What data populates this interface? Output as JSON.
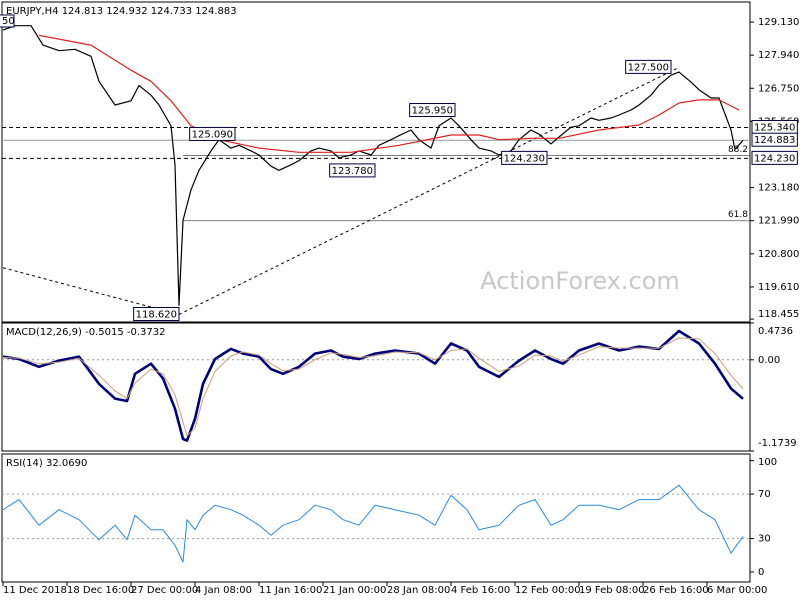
{
  "chart_data": [
    {
      "type": "line",
      "title": "EURJPY,H4  124.813 124.932 124.733 124.883",
      "corner_label": "50",
      "watermark": "ActionForex.com",
      "xlim": [
        0,
        187
      ],
      "ylim": [
        118.35,
        129.85
      ],
      "yticks": [
        {
          "value": 118.455,
          "label": "118.455"
        },
        {
          "value": 119.61,
          "label": "119.610"
        },
        {
          "value": 120.8,
          "label": "120.800"
        },
        {
          "value": 121.99,
          "label": "121.990"
        },
        {
          "value": 123.18,
          "label": "123.180"
        },
        {
          "value": 125.56,
          "label": "125.560"
        },
        {
          "value": 126.75,
          "label": "126.750"
        },
        {
          "value": 127.94,
          "label": "127.940"
        },
        {
          "value": 129.13,
          "label": "129.130"
        }
      ],
      "series": [
        {
          "color": "#000000",
          "width": 1.2,
          "x": [
            0,
            3,
            7,
            10,
            14,
            18,
            22,
            24,
            28,
            32,
            34,
            37,
            39,
            42,
            43,
            44,
            45,
            47,
            49,
            52,
            54,
            57,
            59,
            62,
            64,
            67,
            69,
            72,
            74,
            77,
            79,
            82,
            84,
            87,
            89,
            92,
            94,
            97,
            99,
            102,
            104,
            107,
            109,
            112,
            114,
            117,
            119,
            122,
            124,
            127,
            129,
            132,
            134,
            137,
            139,
            142,
            144,
            147,
            149,
            152,
            154,
            157,
            159,
            162,
            164,
            167,
            169,
            172,
            174,
            177,
            179,
            182,
            183,
            185
          ],
          "values": [
            128.84,
            129.0,
            129.0,
            128.3,
            128.1,
            128.15,
            127.9,
            127.0,
            126.15,
            126.3,
            126.85,
            126.5,
            126.15,
            125.4,
            124.0,
            118.95,
            122.0,
            123.1,
            123.8,
            124.5,
            124.9,
            124.6,
            124.7,
            124.5,
            124.35,
            123.95,
            123.8,
            124.0,
            124.15,
            124.5,
            124.6,
            124.5,
            124.25,
            124.35,
            124.5,
            124.35,
            124.7,
            124.9,
            125.05,
            125.25,
            124.9,
            124.6,
            125.4,
            125.68,
            125.4,
            124.9,
            124.6,
            124.5,
            124.35,
            124.5,
            124.9,
            125.25,
            125.1,
            124.75,
            125.0,
            125.35,
            125.4,
            125.68,
            125.6,
            125.68,
            125.79,
            125.97,
            126.15,
            126.5,
            126.86,
            127.22,
            127.33,
            126.97,
            126.7,
            126.4,
            126.4,
            125.25,
            124.55,
            124.88
          ]
        },
        {
          "color": "#e02020",
          "width": 1.2,
          "x": [
            9,
            22,
            32,
            37,
            42,
            47,
            54,
            64,
            74,
            87,
            99,
            112,
            119,
            124,
            132,
            139,
            149,
            159,
            164,
            169,
            174,
            179,
            184
          ],
          "values": [
            128.65,
            128.3,
            127.4,
            127.0,
            126.3,
            125.4,
            124.9,
            124.6,
            124.45,
            124.45,
            124.7,
            125.07,
            125.07,
            124.9,
            124.95,
            124.95,
            125.25,
            125.43,
            125.79,
            126.22,
            126.33,
            126.33,
            125.97
          ]
        }
      ],
      "levels": [
        {
          "value": 125.34,
          "label": "125.340",
          "style": "dashed"
        },
        {
          "value": 124.883,
          "label": "124.883",
          "style": "solid"
        },
        {
          "value": 124.23,
          "label": "124.230",
          "style": "dashed"
        }
      ],
      "fib_levels": [
        {
          "ratio": 61.8,
          "value": 121.99,
          "x": 45
        },
        {
          "ratio": 88.2,
          "value": 124.33,
          "x": 45
        }
      ],
      "trendlines": [
        {
          "x": [
            0,
            44
          ],
          "values": [
            120.3,
            118.62
          ]
        },
        {
          "x": [
            44,
            169
          ],
          "values": [
            118.62,
            127.5
          ]
        }
      ],
      "callouts": [
        {
          "x": 44,
          "value": 118.62,
          "label": "118.620"
        },
        {
          "x": 58,
          "value": 125.09,
          "label": "125.090"
        },
        {
          "x": 93,
          "value": 123.78,
          "label": "123.780"
        },
        {
          "x": 113,
          "value": 125.95,
          "label": "125.950"
        },
        {
          "x": 136,
          "value": 124.23,
          "label": "124.230"
        },
        {
          "x": 167,
          "value": 127.5,
          "label": "127.500"
        }
      ]
    },
    {
      "type": "line",
      "title": "MACD(12,26,9) -0.5015 -0.3732",
      "xlim": [
        0,
        187
      ],
      "ylim": [
        -1.1739,
        0.4736
      ],
      "yticks": [
        -1.1739,
        {
          "value": 0,
          "label": "0.00"
        },
        0.4736
      ],
      "dotted_levels": [
        0
      ],
      "series": [
        {
          "color": "#00007a",
          "width": 2.6,
          "x": [
            0,
            4,
            9,
            14,
            19,
            24,
            28,
            31,
            33,
            37,
            40,
            43,
            45,
            46,
            48,
            50,
            53,
            57,
            60,
            64,
            67,
            70,
            74,
            78,
            82,
            85,
            89,
            93,
            98,
            104,
            108,
            112,
            116,
            119,
            124,
            129,
            133,
            137,
            140,
            144,
            149,
            154,
            159,
            164,
            169,
            174,
            178,
            182,
            185
          ],
          "values": [
            0.04,
            0.01,
            -0.09,
            -0.01,
            0.04,
            -0.31,
            -0.5,
            -0.53,
            -0.18,
            -0.05,
            -0.24,
            -0.63,
            -1.02,
            -1.04,
            -0.76,
            -0.31,
            0.01,
            0.14,
            0.08,
            0.04,
            -0.12,
            -0.18,
            -0.09,
            0.08,
            0.12,
            0.04,
            0.01,
            0.08,
            0.12,
            0.08,
            -0.05,
            0.21,
            0.12,
            -0.09,
            -0.22,
            -0.01,
            0.12,
            0.01,
            -0.05,
            0.12,
            0.21,
            0.12,
            0.17,
            0.14,
            0.37,
            0.21,
            -0.05,
            -0.37,
            -0.5015
          ]
        },
        {
          "color": "#c8a07a",
          "width": 1,
          "x": [
            0,
            4,
            9,
            14,
            19,
            24,
            28,
            31,
            33,
            37,
            40,
            43,
            45,
            46,
            48,
            50,
            53,
            57,
            60,
            64,
            67,
            70,
            74,
            78,
            82,
            85,
            89,
            93,
            98,
            104,
            108,
            112,
            116,
            119,
            124,
            129,
            133,
            137,
            140,
            144,
            149,
            154,
            159,
            164,
            169,
            174,
            178,
            182,
            185
          ],
          "values": [
            0.03,
            0.02,
            -0.05,
            -0.03,
            0.02,
            -0.2,
            -0.4,
            -0.5,
            -0.3,
            -0.12,
            -0.18,
            -0.45,
            -0.8,
            -0.98,
            -0.88,
            -0.5,
            -0.15,
            0.05,
            0.1,
            0.06,
            -0.05,
            -0.14,
            -0.12,
            0.0,
            0.09,
            0.07,
            0.03,
            0.05,
            0.1,
            0.09,
            0.0,
            0.12,
            0.14,
            0.02,
            -0.15,
            -0.08,
            0.06,
            0.05,
            -0.02,
            0.06,
            0.17,
            0.15,
            0.15,
            0.15,
            0.28,
            0.27,
            0.08,
            -0.2,
            -0.3732
          ]
        }
      ]
    },
    {
      "type": "line",
      "title": "RSI(14) 32.0690",
      "xlim": [
        0,
        187
      ],
      "ylim": [
        -9,
        106
      ],
      "yticks": [
        0,
        30,
        70,
        100
      ],
      "dotted_levels": [
        30,
        70
      ],
      "xticks": [
        {
          "value": 0,
          "label": "11 Dec 2018"
        },
        {
          "value": 16,
          "label": "18 Dec 16:00"
        },
        {
          "value": 32,
          "label": "27 Dec 00:00"
        },
        {
          "value": 48,
          "label": "4 Jan 08:00"
        },
        {
          "value": 64,
          "label": "11 Jan 16:00"
        },
        {
          "value": 80,
          "label": "21 Jan 00:00"
        },
        {
          "value": 96,
          "label": "28 Jan 08:00"
        },
        {
          "value": 112,
          "label": "4 Feb 16:00"
        },
        {
          "value": 128,
          "label": "12 Feb 00:00"
        },
        {
          "value": 144,
          "label": "19 Feb 08:00"
        },
        {
          "value": 160,
          "label": "26 Feb 16:00"
        },
        {
          "value": 176,
          "label": "6 Mar 00:00"
        }
      ],
      "series": [
        {
          "color": "#2a8ad8",
          "width": 1,
          "x": [
            0,
            4,
            9,
            14,
            19,
            24,
            28,
            31,
            33,
            37,
            40,
            43,
            45,
            46,
            48,
            50,
            53,
            57,
            60,
            64,
            67,
            70,
            74,
            78,
            82,
            85,
            89,
            93,
            98,
            104,
            108,
            112,
            116,
            119,
            124,
            129,
            133,
            137,
            140,
            144,
            149,
            154,
            159,
            164,
            169,
            174,
            178,
            182,
            185
          ],
          "values": [
            56,
            65,
            42,
            56,
            47,
            29,
            42,
            29,
            51,
            38,
            38,
            24,
            9,
            47,
            38,
            51,
            60,
            56,
            51,
            42,
            33,
            42,
            47,
            60,
            56,
            47,
            42,
            60,
            56,
            51,
            42,
            69,
            56,
            38,
            42,
            60,
            65,
            42,
            47,
            60,
            60,
            56,
            65,
            65,
            78,
            56,
            47,
            17,
            32.069
          ]
        }
      ]
    }
  ]
}
